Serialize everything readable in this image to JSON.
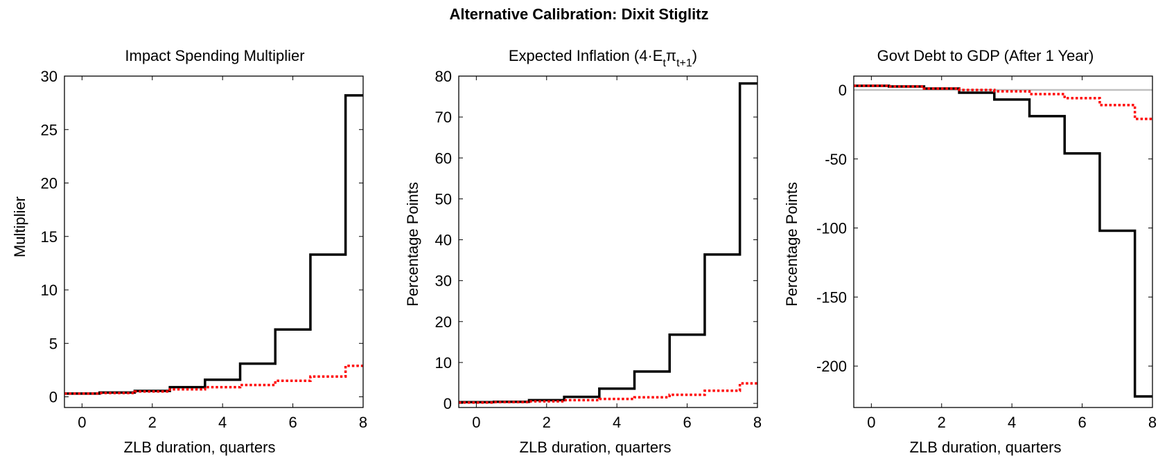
{
  "figure": {
    "title": "Alternative Calibration: Dixit Stiglitz"
  },
  "chart_data": [
    {
      "type": "line",
      "step": true,
      "title": "Impact Spending Multiplier",
      "xlabel": "ZLB duration, quarters",
      "ylabel": "Multiplier",
      "xlim": [
        -0.5,
        8
      ],
      "ylim": [
        -1,
        30
      ],
      "xticks": [
        0,
        2,
        4,
        6,
        8
      ],
      "yticks": [
        0,
        5,
        10,
        15,
        20,
        25,
        30
      ],
      "x": [
        0,
        1,
        2,
        3,
        4,
        5,
        6,
        7,
        8
      ],
      "series": [
        {
          "values": [
            0.3,
            0.4,
            0.55,
            0.9,
            1.6,
            3.1,
            6.3,
            13.3,
            28.2
          ],
          "color": "#000000",
          "style": "solid"
        },
        {
          "values": [
            0.3,
            0.35,
            0.5,
            0.7,
            0.9,
            1.1,
            1.5,
            1.9,
            2.9
          ],
          "color": "#ff0000",
          "style": "dotted"
        }
      ]
    },
    {
      "type": "line",
      "step": true,
      "title": "Expected Inflation (4·E",
      "title_sub1": "t",
      "title_mid": "π",
      "title_sub2": "t+1",
      "title_end": ")",
      "xlabel": "ZLB duration, quarters",
      "ylabel": "Percentage Points",
      "xlim": [
        -0.5,
        8
      ],
      "ylim": [
        -1,
        80
      ],
      "xticks": [
        0,
        2,
        4,
        6,
        8
      ],
      "yticks": [
        0,
        10,
        20,
        30,
        40,
        50,
        60,
        70,
        80
      ],
      "x": [
        0,
        1,
        2,
        3,
        4,
        5,
        6,
        7,
        8
      ],
      "series": [
        {
          "values": [
            0.3,
            0.4,
            0.8,
            1.6,
            3.6,
            7.8,
            16.8,
            36.4,
            78.2
          ],
          "color": "#000000",
          "style": "solid"
        },
        {
          "values": [
            0.2,
            0.3,
            0.5,
            0.8,
            1.1,
            1.5,
            2.1,
            3.1,
            4.9
          ],
          "color": "#ff0000",
          "style": "dotted"
        }
      ]
    },
    {
      "type": "line",
      "step": true,
      "title": "Govt Debt to GDP (After 1 Year)",
      "xlabel": "ZLB duration, quarters",
      "ylabel": "Percentage Points",
      "xlim": [
        -0.5,
        8
      ],
      "ylim": [
        -230,
        10
      ],
      "xticks": [
        0,
        2,
        4,
        6,
        8
      ],
      "yticks": [
        0,
        -50,
        -100,
        -150,
        -200
      ],
      "x": [
        0,
        1,
        2,
        3,
        4,
        5,
        6,
        7,
        8
      ],
      "zero_line": true,
      "series": [
        {
          "values": [
            3,
            2.5,
            1,
            -2,
            -7,
            -19,
            -46,
            -102,
            -222
          ],
          "color": "#000000",
          "style": "solid"
        },
        {
          "values": [
            3,
            2.5,
            1,
            0,
            -1,
            -3,
            -6,
            -11,
            -21
          ],
          "color": "#ff0000",
          "style": "dotted"
        }
      ]
    }
  ]
}
